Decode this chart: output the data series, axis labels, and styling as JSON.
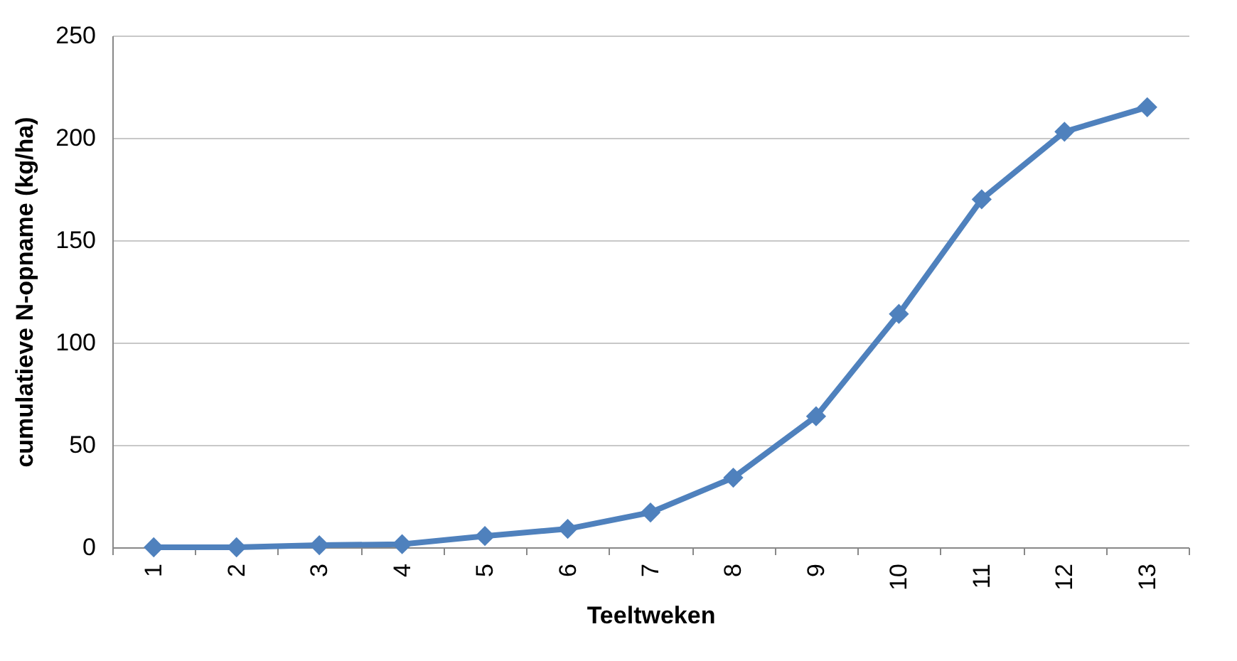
{
  "chart_data": {
    "type": "line",
    "xlabel": "Teeltweken",
    "ylabel": "cumulatieve N-opname (kg/ha)",
    "categories": [
      "1",
      "2",
      "3",
      "4",
      "5",
      "6",
      "7",
      "8",
      "9",
      "10",
      "11",
      "12",
      "13"
    ],
    "series": [
      {
        "color": "#4f81bd",
        "values": [
          0,
          0,
          1,
          1.5,
          5.5,
          9,
          17,
          34,
          64,
          114,
          170,
          203,
          215
        ]
      }
    ],
    "ylim": [
      0,
      250
    ],
    "yticks": [
      0,
      50,
      100,
      150,
      200,
      250
    ],
    "grid": "y",
    "marker": "diamond",
    "line_style": "solid"
  }
}
